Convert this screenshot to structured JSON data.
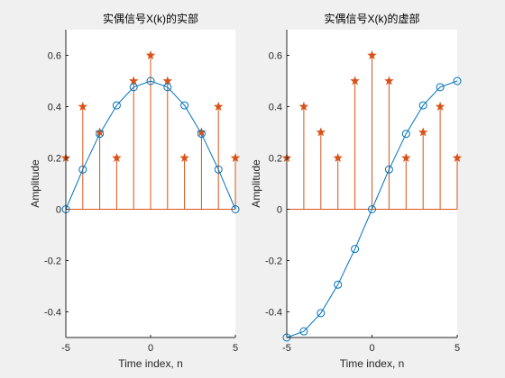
{
  "figure": {
    "background": "#f0f0f0",
    "axes_background": "#ffffff"
  },
  "chart_data": [
    {
      "type": "line",
      "title": "实偶信号X(k)的实部",
      "xlabel": "Time index, n",
      "ylabel": "Amplitude",
      "xlim": [
        -5,
        5
      ],
      "ylim": [
        -0.5,
        0.7
      ],
      "xticks": [
        -5,
        0,
        5
      ],
      "yticks": [
        -0.4,
        -0.2,
        0,
        0.2,
        0.4,
        0.6
      ],
      "ytick_labels": [
        "-0.4",
        "-0.2",
        "0",
        "0.2",
        "0.4",
        "0.6"
      ],
      "grid": false,
      "series": [
        {
          "type": "stem",
          "marker": "star",
          "color": "#d95319",
          "x": [
            -5,
            -4,
            -3,
            -2,
            -1,
            0,
            1,
            2,
            3,
            4,
            5
          ],
          "values": [
            0.2,
            0.4,
            0.3,
            0.2,
            0.5,
            0.6,
            0.5,
            0.2,
            0.3,
            0.4,
            0.2
          ]
        },
        {
          "type": "line",
          "marker": "circle",
          "color": "#0072bd",
          "x": [
            -5,
            -4,
            -3,
            -2,
            -1,
            0,
            1,
            2,
            3,
            4,
            5
          ],
          "values": [
            0,
            0.155,
            0.294,
            0.405,
            0.476,
            0.5,
            0.476,
            0.405,
            0.294,
            0.155,
            0
          ]
        }
      ]
    },
    {
      "type": "line",
      "title": "实偶信号X(k)的虚部",
      "xlabel": "Time index, n",
      "ylabel": "Amplitude",
      "xlim": [
        -5,
        5
      ],
      "ylim": [
        -0.5,
        0.7
      ],
      "xticks": [
        -5,
        0,
        5
      ],
      "yticks": [
        -0.4,
        -0.2,
        0,
        0.2,
        0.4,
        0.6
      ],
      "ytick_labels": [
        "-0.4",
        "-0.2",
        "0",
        "0.2",
        "0.4",
        "0.6"
      ],
      "grid": false,
      "series": [
        {
          "type": "stem",
          "marker": "star",
          "color": "#d95319",
          "x": [
            -5,
            -4,
            -3,
            -2,
            -1,
            0,
            1,
            2,
            3,
            4,
            5
          ],
          "values": [
            0.2,
            0.4,
            0.3,
            0.2,
            0.5,
            0.6,
            0.5,
            0.2,
            0.3,
            0.4,
            0.2
          ]
        },
        {
          "type": "line",
          "marker": "circle",
          "color": "#0072bd",
          "x": [
            -5,
            -4,
            -3,
            -2,
            -1,
            0,
            1,
            2,
            3,
            4,
            5
          ],
          "values": [
            -0.5,
            -0.476,
            -0.405,
            -0.294,
            -0.155,
            0,
            0.155,
            0.294,
            0.405,
            0.476,
            0.5
          ]
        }
      ]
    }
  ]
}
